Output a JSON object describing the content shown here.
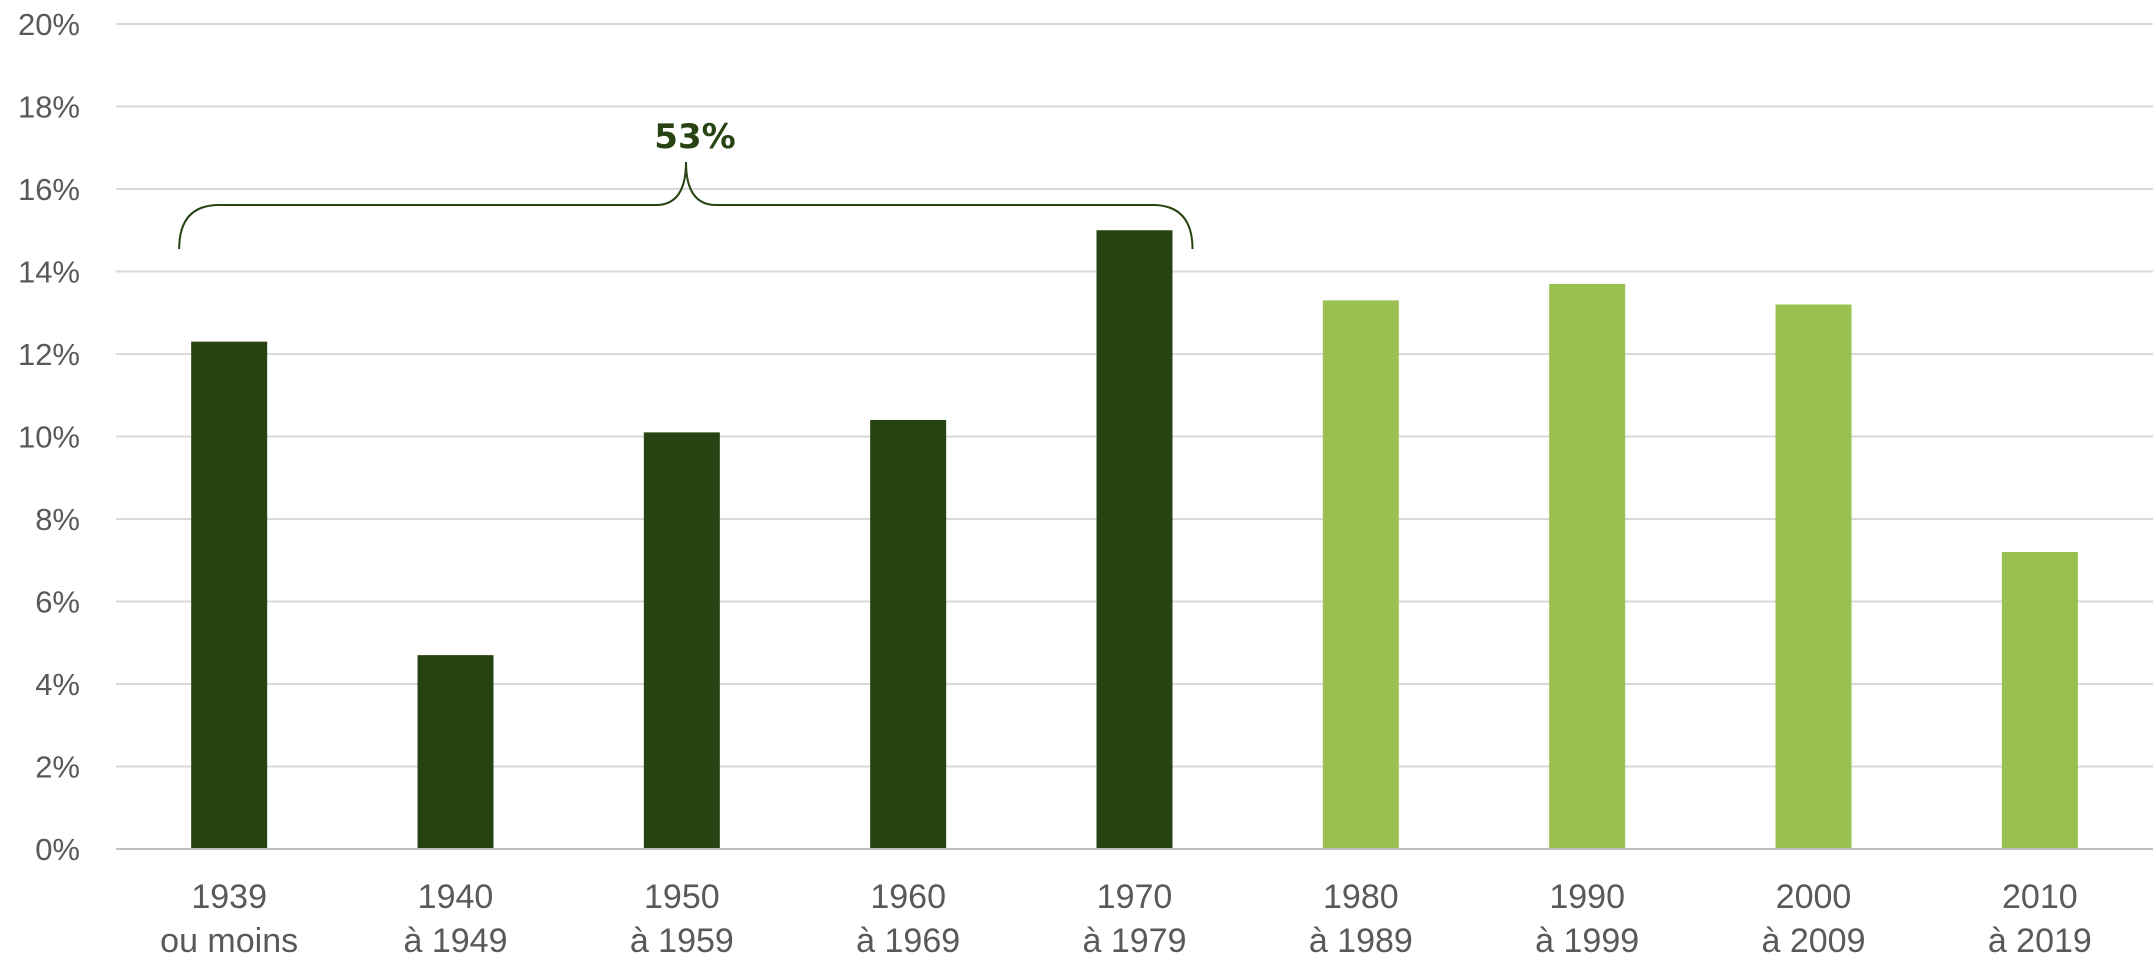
{
  "chart_data": {
    "type": "bar",
    "categories": [
      [
        "1939",
        "ou moins"
      ],
      [
        "1940",
        "à 1949"
      ],
      [
        "1950",
        "à 1959"
      ],
      [
        "1960",
        "à 1969"
      ],
      [
        "1970",
        "à 1979"
      ],
      [
        "1980",
        "à 1989"
      ],
      [
        "1990",
        "à 1999"
      ],
      [
        "2000",
        "à 2009"
      ],
      [
        "2010",
        "à 2019"
      ]
    ],
    "values": [
      12.3,
      4.7,
      10.1,
      10.4,
      15.0,
      13.3,
      13.7,
      13.2,
      7.2
    ],
    "bar_groups": [
      "dark",
      "dark",
      "dark",
      "dark",
      "dark",
      "light",
      "light",
      "light",
      "light"
    ],
    "colors": {
      "dark": "#264311",
      "light": "#99c050",
      "grid": "#d9d9d9",
      "axis": "#bfbfbf",
      "annotation": "#264311"
    },
    "ylim": [
      0,
      20
    ],
    "yticks": [
      0,
      2,
      4,
      6,
      8,
      10,
      12,
      14,
      16,
      18,
      20
    ],
    "ytick_labels": [
      "0%",
      "2%",
      "4%",
      "6%",
      "8%",
      "10%",
      "12%",
      "14%",
      "16%",
      "18%",
      "20%"
    ],
    "grid": true,
    "title": "",
    "xlabel": "",
    "ylabel": "",
    "annotation": {
      "text": "53%",
      "type": "brace",
      "spans_categories": [
        0,
        4
      ]
    }
  }
}
